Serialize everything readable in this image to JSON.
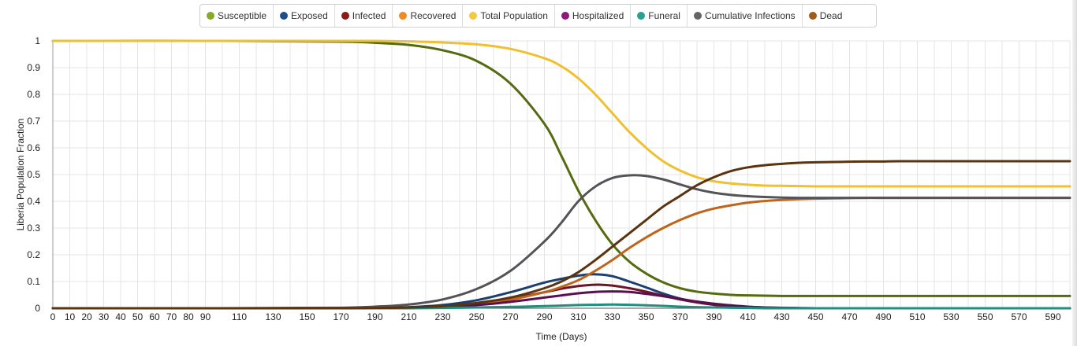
{
  "chart_data": {
    "type": "line",
    "xlabel": "Time (Days)",
    "ylabel": "Liberia Population Fraction",
    "xlim": [
      0,
      600
    ],
    "ylim": [
      0,
      1
    ],
    "x_ticks": [
      0,
      10,
      20,
      30,
      40,
      50,
      60,
      70,
      80,
      90,
      110,
      130,
      150,
      170,
      190,
      210,
      230,
      250,
      270,
      290,
      310,
      330,
      350,
      370,
      390,
      410,
      430,
      450,
      470,
      490,
      510,
      530,
      550,
      570,
      590
    ],
    "y_ticks": [
      0,
      0.1,
      0.2,
      0.3,
      0.4,
      0.5,
      0.6,
      0.7,
      0.8,
      0.9,
      1
    ],
    "grid": true,
    "legend_position": "top-center",
    "x": [
      0,
      100,
      170,
      190,
      210,
      230,
      250,
      270,
      290,
      300,
      310,
      320,
      330,
      340,
      350,
      360,
      370,
      380,
      390,
      400,
      410,
      420,
      430,
      440,
      450,
      460,
      470,
      480,
      490,
      500,
      550,
      600
    ],
    "series": [
      {
        "name": "Susceptible",
        "color": "#556b10",
        "legend_color": "#8aa82a",
        "values": [
          1,
          1,
          0.997,
          0.993,
          0.985,
          0.965,
          0.925,
          0.84,
          0.69,
          0.57,
          0.44,
          0.33,
          0.24,
          0.175,
          0.13,
          0.097,
          0.075,
          0.062,
          0.055,
          0.05,
          0.048,
          0.047,
          0.046,
          0.046,
          0.046,
          0.046,
          0.046,
          0.046,
          0.046,
          0.046,
          0.046,
          0.046
        ]
      },
      {
        "name": "Exposed",
        "color": "#1c3f72",
        "legend_color": "#1f4e8c",
        "values": [
          0,
          0,
          0,
          0.001,
          0.004,
          0.012,
          0.03,
          0.06,
          0.096,
          0.11,
          0.122,
          0.127,
          0.12,
          0.1,
          0.078,
          0.055,
          0.036,
          0.022,
          0.013,
          0.007,
          0.004,
          0.002,
          0.001,
          0,
          0,
          0,
          0,
          0,
          0,
          0,
          0,
          0
        ]
      },
      {
        "name": "Infected",
        "color": "#6e1428",
        "legend_color": "#8b1a1a",
        "values": [
          0,
          0,
          0,
          0.001,
          0.003,
          0.008,
          0.018,
          0.036,
          0.06,
          0.073,
          0.083,
          0.088,
          0.085,
          0.075,
          0.062,
          0.047,
          0.033,
          0.022,
          0.014,
          0.008,
          0.005,
          0.003,
          0.001,
          0,
          0,
          0,
          0,
          0,
          0,
          0,
          0,
          0
        ]
      },
      {
        "name": "Recovered",
        "color": "#c0641a",
        "legend_color": "#f08a24",
        "values": [
          0,
          0,
          0,
          0,
          0.002,
          0.006,
          0.015,
          0.032,
          0.06,
          0.08,
          0.105,
          0.14,
          0.18,
          0.225,
          0.265,
          0.3,
          0.33,
          0.355,
          0.373,
          0.385,
          0.395,
          0.401,
          0.405,
          0.408,
          0.41,
          0.411,
          0.412,
          0.413,
          0.413,
          0.413,
          0.413,
          0.413
        ]
      },
      {
        "name": "Total Population",
        "color": "#f0c030",
        "legend_color": "#f5c842",
        "values": [
          1,
          1,
          1,
          1,
          0.998,
          0.994,
          0.987,
          0.97,
          0.935,
          0.905,
          0.86,
          0.8,
          0.73,
          0.66,
          0.6,
          0.55,
          0.515,
          0.49,
          0.475,
          0.467,
          0.462,
          0.459,
          0.458,
          0.457,
          0.456,
          0.456,
          0.456,
          0.456,
          0.456,
          0.456,
          0.456,
          0.456
        ]
      },
      {
        "name": "Hospitalized",
        "color": "#5a1050",
        "legend_color": "#8b1a7a",
        "values": [
          0,
          0,
          0,
          0,
          0.002,
          0.005,
          0.012,
          0.024,
          0.04,
          0.048,
          0.056,
          0.061,
          0.063,
          0.061,
          0.054,
          0.045,
          0.035,
          0.025,
          0.017,
          0.011,
          0.006,
          0.003,
          0.002,
          0.001,
          0,
          0,
          0,
          0,
          0,
          0,
          0,
          0
        ]
      },
      {
        "name": "Funeral",
        "color": "#1f8f7f",
        "legend_color": "#2aa090",
        "values": [
          0,
          0,
          0,
          0,
          0,
          0.001,
          0.003,
          0.005,
          0.008,
          0.01,
          0.012,
          0.013,
          0.014,
          0.013,
          0.011,
          0.009,
          0.006,
          0.004,
          0.003,
          0.002,
          0.001,
          0,
          0,
          0,
          0,
          0,
          0,
          0,
          0,
          0,
          0,
          0
        ]
      },
      {
        "name": "Cumulative Infections",
        "color": "#555258",
        "legend_color": "#666666",
        "values": [
          0,
          0,
          0.002,
          0.006,
          0.014,
          0.033,
          0.072,
          0.14,
          0.25,
          0.32,
          0.4,
          0.455,
          0.487,
          0.497,
          0.495,
          0.482,
          0.463,
          0.445,
          0.432,
          0.424,
          0.419,
          0.416,
          0.414,
          0.413,
          0.413,
          0.413,
          0.413,
          0.413,
          0.413,
          0.413,
          0.413,
          0.413
        ]
      },
      {
        "name": "Dead",
        "color": "#5a3410",
        "legend_color": "#a05a1a",
        "values": [
          0,
          0,
          0,
          0.001,
          0.003,
          0.008,
          0.02,
          0.04,
          0.075,
          0.1,
          0.135,
          0.18,
          0.23,
          0.28,
          0.33,
          0.38,
          0.42,
          0.46,
          0.49,
          0.513,
          0.527,
          0.535,
          0.54,
          0.544,
          0.546,
          0.547,
          0.548,
          0.549,
          0.549,
          0.55,
          0.55,
          0.55
        ]
      }
    ]
  }
}
